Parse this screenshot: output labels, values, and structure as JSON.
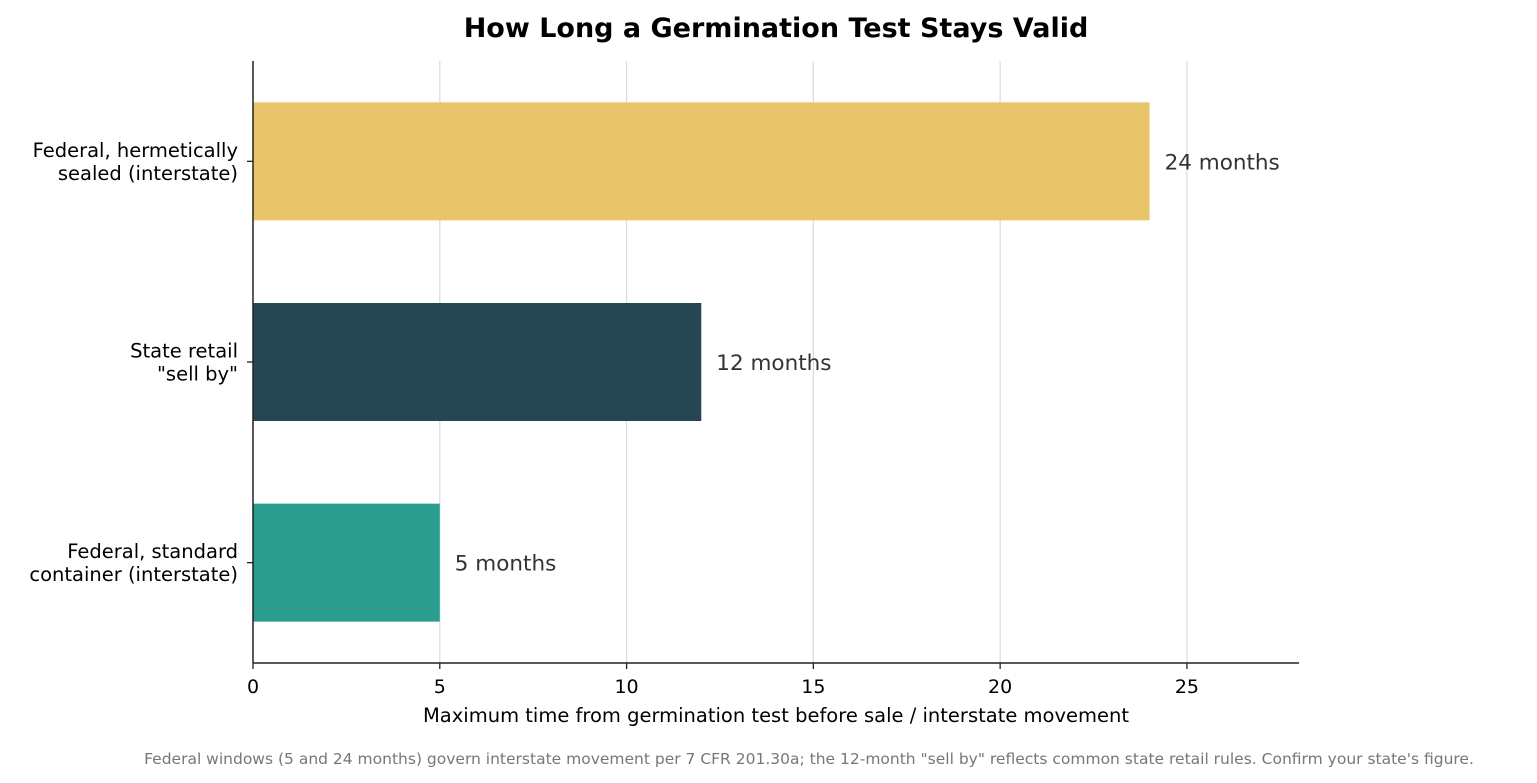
{
  "chart_data": {
    "type": "bar",
    "orientation": "horizontal",
    "title": "How Long a Germination Test Stays Valid",
    "xlabel": "Maximum time from germination test before sale / interstate movement",
    "ylabel": "",
    "xlim": [
      0,
      28
    ],
    "xticks": [
      0,
      5,
      10,
      15,
      20,
      25
    ],
    "grid": "x",
    "categories": [
      [
        "Federal, hermetically",
        "sealed (interstate)"
      ],
      [
        "State retail",
        "\"sell by\""
      ],
      [
        "Federal, standard",
        "container (interstate)"
      ]
    ],
    "values": [
      24,
      12,
      5
    ],
    "value_unit": "months",
    "data_labels": [
      "24 months",
      "12 months",
      "5 months"
    ],
    "colors": [
      "#e8c46b",
      "#264653",
      "#2a9d8f"
    ],
    "footnote": "Federal windows (5 and 24 months) govern interstate movement per 7 CFR 201.30a; the 12-month \"sell by\" reflects common state retail rules. Confirm your state's figure."
  }
}
